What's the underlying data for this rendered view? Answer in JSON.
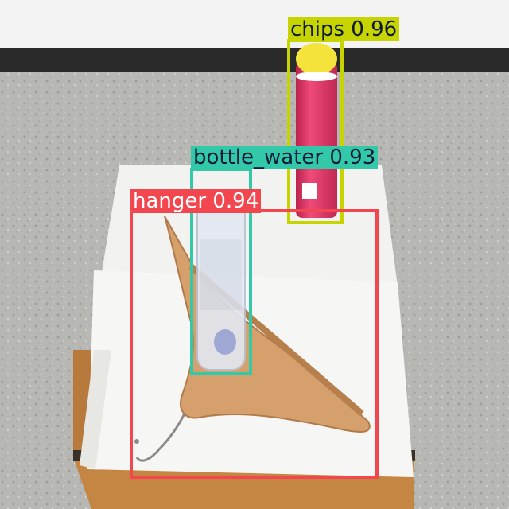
{
  "detections": [
    {
      "label": "chips 0.96",
      "class_name": "chips",
      "score": 0.96,
      "box_color": "#c8d400",
      "text_color": "#0d1a3a"
    },
    {
      "label": "bottle_water 0.93",
      "class_name": "bottle_water",
      "score": 0.93,
      "box_color": "#33c9a8",
      "text_color": "#0d1a3a"
    },
    {
      "label": "hanger 0.94",
      "class_name": "hanger",
      "score": 0.94,
      "box_color": "#f2474e",
      "text_color": "#ffffff"
    }
  ],
  "colors": {
    "wall": "#f3f3f3",
    "floor": "#b9b9b6",
    "baseboard": "#2a2a2a",
    "paper": "#f4f4f2",
    "cabinet_wood": "#c98a4a",
    "hanger_wood": "#d8a16d",
    "chips_can": "#e23a6a",
    "chips_lid": "#f4e33a"
  }
}
